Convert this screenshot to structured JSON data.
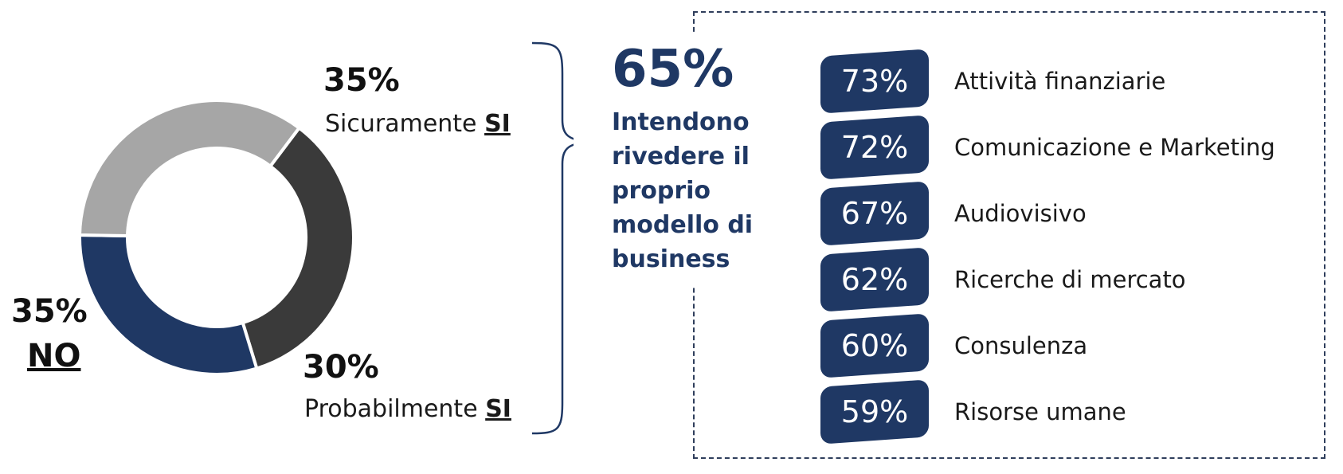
{
  "chart_data": {
    "type": "pie",
    "donut": true,
    "slices": [
      {
        "label": "Sicuramente SI",
        "value": 35,
        "color": "#3a3a3a"
      },
      {
        "label": "Probabilmente SI",
        "value": 30,
        "color": "#1f3864"
      },
      {
        "label": "NO",
        "value": 35,
        "color": "#a6a6a6"
      }
    ],
    "slice_labels": [
      {
        "pct": "35%",
        "prefix": "Sicuramente ",
        "emph": "SI"
      },
      {
        "pct": "30%",
        "prefix": "Probabilmente ",
        "emph": "SI"
      },
      {
        "pct": "35%",
        "prefix": "",
        "emph": "NO"
      }
    ]
  },
  "headline": {
    "value": "65%",
    "text": "Intendono rivedere il proprio modello di business"
  },
  "breakdown": [
    {
      "value": "73%",
      "label": "Attività finanziarie"
    },
    {
      "value": "72%",
      "label": "Comunicazione e Marketing"
    },
    {
      "value": "67%",
      "label": "Audiovisivo"
    },
    {
      "value": "62%",
      "label": "Ricerche di mercato"
    },
    {
      "value": "60%",
      "label": "Consulenza"
    },
    {
      "value": "59%",
      "label": "Risorse umane"
    }
  ],
  "colors": {
    "accent": "#1f3864",
    "dark": "#3a3a3a",
    "grey": "#a6a6a6"
  }
}
